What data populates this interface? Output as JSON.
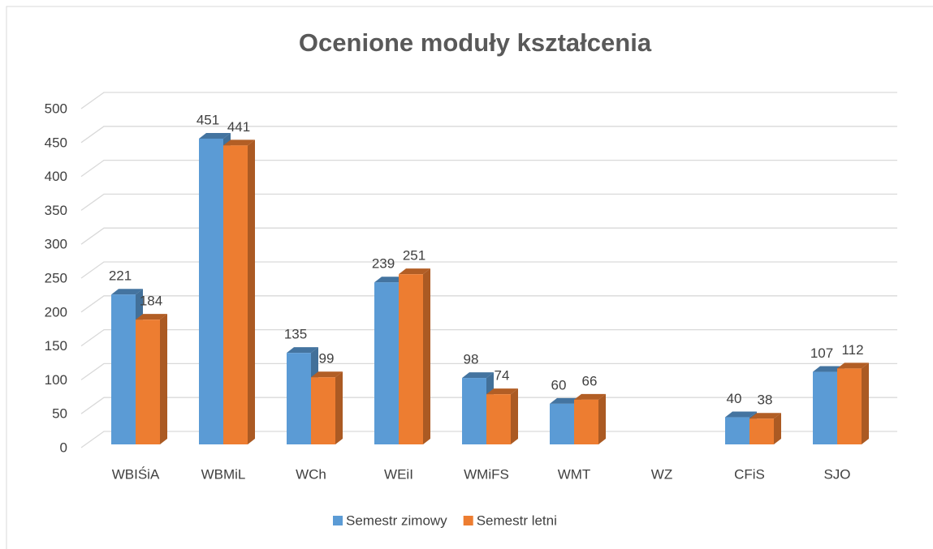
{
  "chart_data": {
    "type": "bar3d",
    "title": "Ocenione moduły kształcenia",
    "categories": [
      "WBIŚiA",
      "WBMiL",
      "WCh",
      "WEiI",
      "WMiFS",
      "WMT",
      "WZ",
      "CFiS",
      "SJO"
    ],
    "series": [
      {
        "name": "Semestr zimowy",
        "color": "#5b9bd5",
        "values": [
          221,
          451,
          135,
          239,
          98,
          60,
          null,
          40,
          107
        ]
      },
      {
        "name": "Semestr letni",
        "color": "#ed7d31",
        "values": [
          184,
          441,
          99,
          251,
          74,
          66,
          null,
          38,
          112
        ]
      }
    ],
    "ylim": [
      0,
      500
    ],
    "yticks": [
      0,
      50,
      100,
      150,
      200,
      250,
      300,
      350,
      400,
      450,
      500
    ],
    "grid": true,
    "legend": "bottom"
  }
}
